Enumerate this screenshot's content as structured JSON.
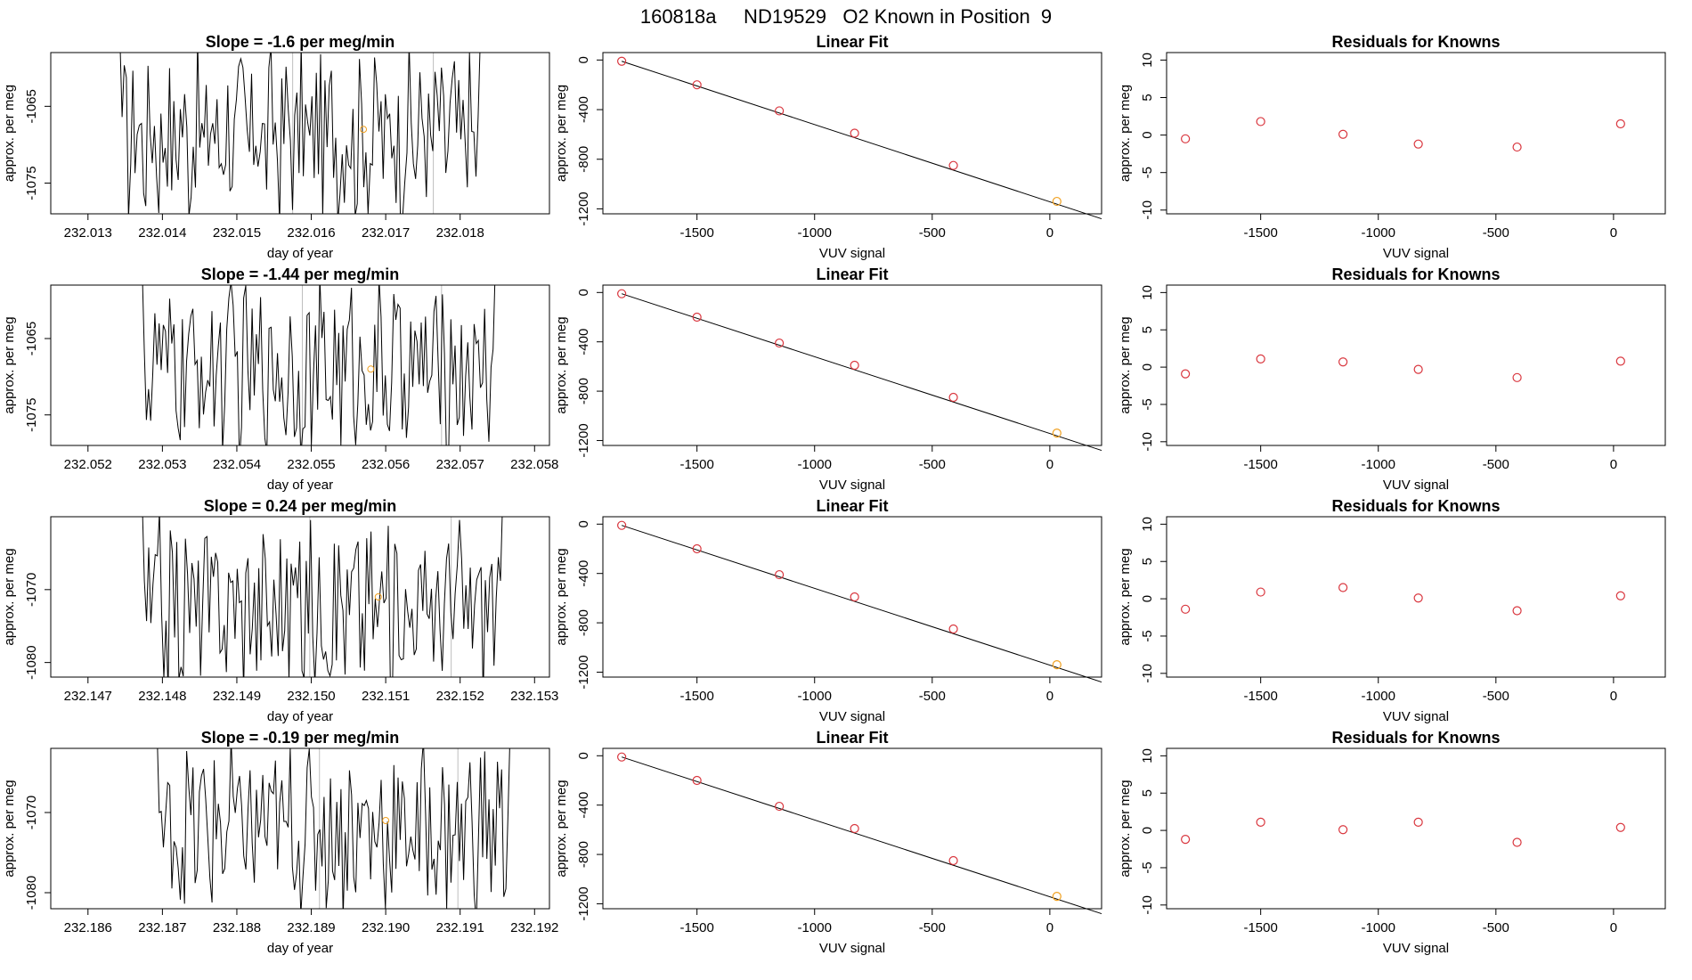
{
  "page": {
    "title": "160818a     ND19529   O2 Known in Position  9"
  },
  "labels": {
    "timeseries_xlabel": "day of year",
    "ylabel": "approx. per meg",
    "vuv_xlabel": "VUV signal",
    "linfit_title": "Linear Fit",
    "resid_title": "Residuals for Knowns"
  },
  "colors": {
    "line": "#000000",
    "calibration_point": "#d9363e",
    "sample_point": "#f0a020",
    "vline": "#bebebe"
  },
  "chart_data": [
    {
      "row": 1,
      "type": "line",
      "title": "Slope =  -1.6  per meg/min",
      "xlabel": "day of year",
      "ylabel": "approx. per meg",
      "xlim": [
        232.0125,
        232.0192
      ],
      "ylim": [
        -1079,
        -1058
      ],
      "xticks": [
        "232.013",
        "232.014",
        "232.015",
        "232.016",
        "232.017",
        "232.018"
      ],
      "yticks": [
        "-1065",
        "-1075"
      ],
      "trace_start": 232.0134,
      "trace_end": 232.0183,
      "trace_center": -1068.5,
      "vlines": [
        232.01575,
        232.01764
      ],
      "marker": {
        "x": 232.0167,
        "y": -1068
      }
    },
    {
      "row": 2,
      "type": "line",
      "title": "Slope =  -1.44  per meg/min",
      "xlabel": "day of year",
      "ylabel": "approx. per meg",
      "xlim": [
        232.0515,
        232.0582
      ],
      "ylim": [
        -1079,
        -1058
      ],
      "xticks": [
        "232.052",
        "232.053",
        "232.054",
        "232.055",
        "232.056",
        "232.057",
        "232.058"
      ],
      "yticks": [
        "-1065",
        "-1075"
      ],
      "trace_start": 232.0527,
      "trace_end": 232.0575,
      "trace_center": -1069,
      "vlines": [
        232.05488,
        232.05675
      ],
      "marker": {
        "x": 232.0558,
        "y": -1069
      }
    },
    {
      "row": 3,
      "type": "line",
      "title": "Slope =  0.24  per meg/min",
      "xlabel": "day of year",
      "ylabel": "approx. per meg",
      "xlim": [
        232.1465,
        232.1532
      ],
      "ylim": [
        -1082,
        -1060
      ],
      "xticks": [
        "232.147",
        "232.148",
        "232.149",
        "232.150",
        "232.151",
        "232.152",
        "232.153"
      ],
      "yticks": [
        "-1070",
        "-1080"
      ],
      "trace_start": 232.1477,
      "trace_end": 232.1526,
      "trace_center": -1072,
      "vlines": [
        232.14998,
        232.15188
      ],
      "marker": {
        "x": 232.1509,
        "y": -1071
      }
    },
    {
      "row": 4,
      "type": "line",
      "title": "Slope =  -0.19  per meg/min",
      "xlabel": "day of year",
      "ylabel": "approx. per meg",
      "xlim": [
        232.1855,
        232.1922
      ],
      "ylim": [
        -1082,
        -1062
      ],
      "xticks": [
        "232.186",
        "232.187",
        "232.188",
        "232.189",
        "232.190",
        "232.191",
        "232.192"
      ],
      "yticks": [
        "-1070",
        "-1080"
      ],
      "trace_start": 232.1869,
      "trace_end": 232.1917,
      "trace_center": -1072,
      "vlines": [
        232.18911,
        232.19097
      ],
      "marker": {
        "x": 232.19,
        "y": -1071
      }
    },
    {
      "row": 1,
      "type": "scatter",
      "title": "Linear Fit",
      "xlabel": "VUV signal",
      "ylabel": "approx. per meg",
      "xlim": [
        -1900,
        220
      ],
      "ylim": [
        -1240,
        60
      ],
      "xticks": [
        "-1500",
        "-1000",
        "-500",
        "0"
      ],
      "yticks": [
        "0",
        "-400",
        "-800",
        "-1200"
      ],
      "x": [
        -1820,
        -1500,
        -1150,
        -830,
        -410,
        30
      ],
      "y": [
        -10,
        -200,
        -410,
        -590,
        -850,
        -1140
      ],
      "fit": {
        "x": [
          -1820,
          220
        ],
        "y": [
          -10,
          -1280
        ]
      },
      "highlight_index": 5
    },
    {
      "row": 2,
      "type": "scatter",
      "title": "Linear Fit",
      "xlabel": "VUV signal",
      "ylabel": "approx. per meg",
      "xlim": [
        -1900,
        220
      ],
      "ylim": [
        -1240,
        60
      ],
      "xticks": [
        "-1500",
        "-1000",
        "-500",
        "0"
      ],
      "yticks": [
        "0",
        "-400",
        "-800",
        "-1200"
      ],
      "x": [
        -1820,
        -1500,
        -1150,
        -830,
        -410,
        30
      ],
      "y": [
        -10,
        -200,
        -410,
        -590,
        -850,
        -1140
      ],
      "fit": {
        "x": [
          -1820,
          220
        ],
        "y": [
          -10,
          -1280
        ]
      },
      "highlight_index": 5
    },
    {
      "row": 3,
      "type": "scatter",
      "title": "Linear Fit",
      "xlabel": "VUV signal",
      "ylabel": "approx. per meg",
      "xlim": [
        -1900,
        220
      ],
      "ylim": [
        -1240,
        60
      ],
      "xticks": [
        "-1500",
        "-1000",
        "-500",
        "0"
      ],
      "yticks": [
        "0",
        "-400",
        "-800",
        "-1200"
      ],
      "x": [
        -1820,
        -1500,
        -1150,
        -830,
        -410,
        30
      ],
      "y": [
        -10,
        -200,
        -410,
        -590,
        -850,
        -1140
      ],
      "fit": {
        "x": [
          -1820,
          220
        ],
        "y": [
          -10,
          -1280
        ]
      },
      "highlight_index": 5
    },
    {
      "row": 4,
      "type": "scatter",
      "title": "Linear Fit",
      "xlabel": "VUV signal",
      "ylabel": "approx. per meg",
      "xlim": [
        -1900,
        220
      ],
      "ylim": [
        -1240,
        60
      ],
      "xticks": [
        "-1500",
        "-1000",
        "-500",
        "0"
      ],
      "yticks": [
        "0",
        "-400",
        "-800",
        "-1200"
      ],
      "x": [
        -1820,
        -1500,
        -1150,
        -830,
        -410,
        30
      ],
      "y": [
        -10,
        -200,
        -410,
        -590,
        -850,
        -1140
      ],
      "fit": {
        "x": [
          -1820,
          220
        ],
        "y": [
          -10,
          -1280
        ]
      },
      "highlight_index": 5
    },
    {
      "row": 1,
      "type": "scatter",
      "title": "Residuals for Knowns",
      "xlabel": "VUV signal",
      "ylabel": "approx. per meg",
      "xlim": [
        -1900,
        220
      ],
      "ylim": [
        -10.5,
        11
      ],
      "xticks": [
        "-1500",
        "-1000",
        "-500",
        "0"
      ],
      "yticks": [
        "10",
        "5",
        "0",
        "-5",
        "-10"
      ],
      "x": [
        -1820,
        -1500,
        -1150,
        -830,
        -410,
        30
      ],
      "y": [
        -0.5,
        1.8,
        0.1,
        -1.2,
        -1.6,
        1.5
      ]
    },
    {
      "row": 2,
      "type": "scatter",
      "title": "Residuals for Knowns",
      "xlabel": "VUV signal",
      "ylabel": "approx. per meg",
      "xlim": [
        -1900,
        220
      ],
      "ylim": [
        -10.5,
        11
      ],
      "xticks": [
        "-1500",
        "-1000",
        "-500",
        "0"
      ],
      "yticks": [
        "10",
        "5",
        "0",
        "-5",
        "-10"
      ],
      "x": [
        -1820,
        -1500,
        -1150,
        -830,
        -410,
        30
      ],
      "y": [
        -0.9,
        1.1,
        0.7,
        -0.3,
        -1.4,
        0.8
      ]
    },
    {
      "row": 3,
      "type": "scatter",
      "title": "Residuals for Knowns",
      "xlabel": "VUV signal",
      "ylabel": "approx. per meg",
      "xlim": [
        -1900,
        220
      ],
      "ylim": [
        -10.5,
        11
      ],
      "xticks": [
        "-1500",
        "-1000",
        "-500",
        "0"
      ],
      "yticks": [
        "10",
        "5",
        "0",
        "-5",
        "-10"
      ],
      "x": [
        -1820,
        -1500,
        -1150,
        -830,
        -410,
        30
      ],
      "y": [
        -1.4,
        0.9,
        1.5,
        0.1,
        -1.6,
        0.4
      ]
    },
    {
      "row": 4,
      "type": "scatter",
      "title": "Residuals for Knowns",
      "xlabel": "VUV signal",
      "ylabel": "approx. per meg",
      "xlim": [
        -1900,
        220
      ],
      "ylim": [
        -10.5,
        11
      ],
      "xticks": [
        "-1500",
        "-1000",
        "-500",
        "0"
      ],
      "yticks": [
        "10",
        "5",
        "0",
        "-5",
        "-10"
      ],
      "x": [
        -1820,
        -1500,
        -1150,
        -830,
        -410,
        30
      ],
      "y": [
        -1.2,
        1.1,
        0.1,
        1.1,
        -1.6,
        0.4
      ]
    }
  ]
}
